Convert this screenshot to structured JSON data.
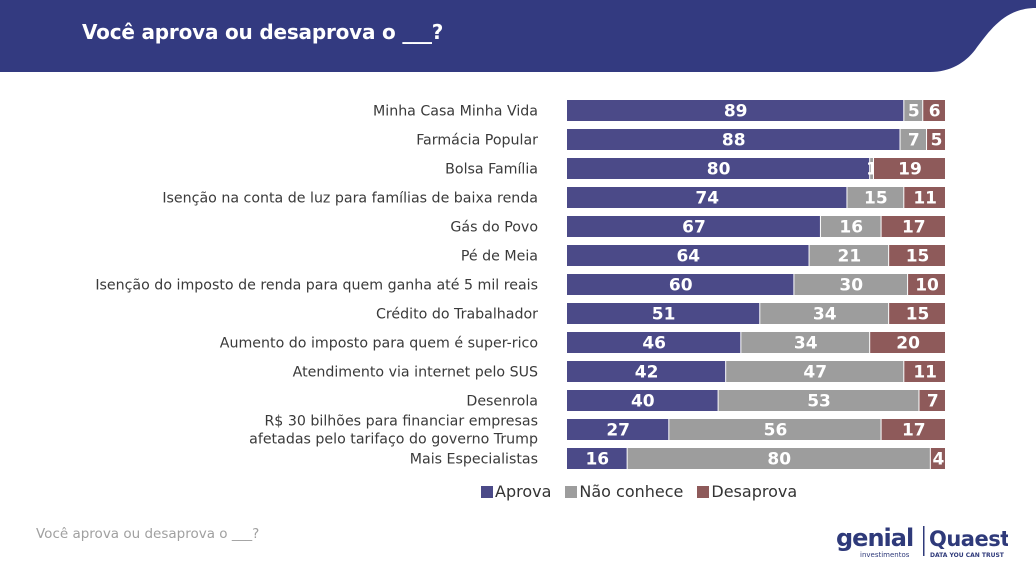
{
  "header": {
    "title": "Você aprova ou desaprova o ___?"
  },
  "footer": {
    "note": "Você aprova ou desaprova o ___?"
  },
  "logos": {
    "genial_name": "genial",
    "genial_sub": "investimentos",
    "quaest_name": "Quaest",
    "quaest_tagline": "DATA YOU CAN TRUST"
  },
  "colors": {
    "header": "#333a80",
    "aprova": "#4b4a88",
    "nao_conhece": "#9d9d9d",
    "desaprova": "#8e5a5a"
  },
  "chart_data": {
    "type": "bar",
    "orientation": "horizontal",
    "stacked": true,
    "title": "Você aprova ou desaprova o ___?",
    "legend_position": "bottom",
    "grid": false,
    "xlim": [
      0,
      100
    ],
    "categories": [
      "Minha Casa Minha Vida",
      "Farmácia Popular",
      "Bolsa Família",
      "Isenção na conta de luz para famílias de baixa renda",
      "Gás do Povo",
      "Pé de Meia",
      "Isenção do imposto de renda para quem ganha até 5 mil reais",
      "Crédito do Trabalhador",
      "Aumento do imposto para quem é super-rico",
      "Atendimento via internet pelo SUS",
      "Desenrola",
      "R$ 30 bilhões para financiar empresas afetadas pelo tarifaço do governo Trump",
      "Mais Especialistas"
    ],
    "series": [
      {
        "name": "Aprova",
        "color": "#4b4a88",
        "values": [
          89,
          88,
          80,
          74,
          67,
          64,
          60,
          51,
          46,
          42,
          40,
          27,
          16
        ]
      },
      {
        "name": "Não conhece",
        "color": "#9d9d9d",
        "values": [
          5,
          7,
          1,
          15,
          16,
          21,
          30,
          34,
          34,
          47,
          53,
          56,
          80
        ]
      },
      {
        "name": "Desaprova",
        "color": "#8e5a5a",
        "values": [
          6,
          5,
          19,
          11,
          17,
          15,
          10,
          15,
          20,
          11,
          7,
          17,
          4
        ]
      }
    ]
  }
}
